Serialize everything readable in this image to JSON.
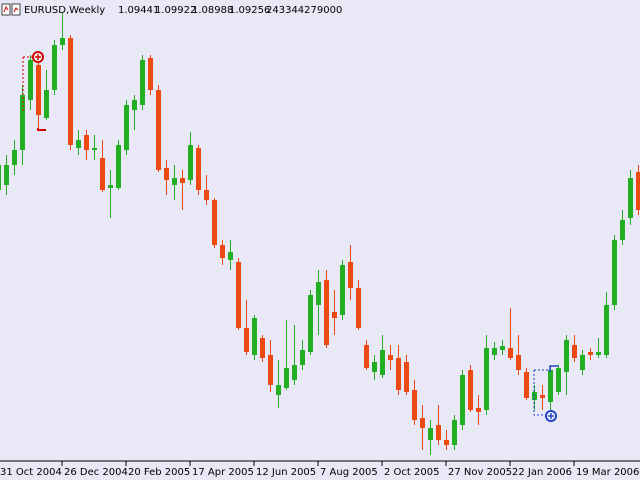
{
  "chart_data": {
    "type": "candlestick",
    "title": "EURUSD,Weekly",
    "header_values": [
      1.09441,
      1.09922,
      1.08988,
      1.09256
    ],
    "volume": 243344279000,
    "up_color": "#22b022",
    "down_color": "#ec4a12",
    "ylim": [
      1.145,
      1.375
    ],
    "categories": [
      "31 Oct 2004",
      null,
      null,
      null,
      null,
      null,
      null,
      null,
      "26 Dec 2004",
      null,
      null,
      null,
      null,
      null,
      null,
      null,
      "20 Feb 2005",
      null,
      null,
      null,
      null,
      null,
      null,
      null,
      "17 Apr 2005",
      null,
      null,
      null,
      null,
      null,
      null,
      null,
      "12 Jun 2005",
      null,
      null,
      null,
      null,
      null,
      null,
      null,
      "7 Aug 2005",
      null,
      null,
      null,
      null,
      null,
      null,
      null,
      "2 Oct 2005",
      null,
      null,
      null,
      null,
      null,
      null,
      null,
      "27 Nov 2005",
      null,
      null,
      null,
      null,
      null,
      null,
      null,
      "22 Jan 2006",
      null,
      null,
      null,
      null,
      null,
      null,
      null,
      "19 Mar 2006",
      null,
      null,
      null,
      null,
      null,
      null,
      null,
      null
    ],
    "open": [
      1.28,
      1.2825,
      1.2925,
      1.3,
      1.325,
      1.3425,
      1.316,
      1.33,
      1.3525,
      1.356,
      1.301,
      1.3075,
      1.3,
      1.296,
      1.281,
      1.281,
      1.3,
      1.32,
      1.3225,
      1.346,
      1.33,
      1.291,
      1.2825,
      1.286,
      1.285,
      1.301,
      1.28,
      1.275,
      1.2525,
      1.245,
      1.244,
      1.211,
      1.1975,
      1.206,
      1.1975,
      1.1775,
      1.181,
      1.185,
      1.1925,
      1.199,
      1.2225,
      1.235,
      1.219,
      1.2175,
      1.244,
      1.231,
      1.2025,
      1.189,
      1.1875,
      1.1975,
      1.196,
      1.194,
      1.18,
      1.166,
      1.155,
      1.1625,
      1.155,
      1.1525,
      1.1625,
      1.19,
      1.171,
      1.17,
      1.1975,
      1.2,
      1.201,
      1.1975,
      1.189,
      1.175,
      1.1775,
      1.174,
      1.179,
      1.189,
      1.2025,
      1.19,
      1.199,
      1.1975,
      1.1975,
      1.2225,
      1.255,
      1.266,
      1.289
    ],
    "high": [
      1.2975,
      1.2975,
      1.305,
      1.3325,
      1.3475,
      1.3475,
      1.34,
      1.355,
      1.369,
      1.3575,
      1.31,
      1.31,
      1.3075,
      1.305,
      1.29,
      1.305,
      1.325,
      1.3275,
      1.3475,
      1.3475,
      1.3325,
      1.295,
      1.2925,
      1.29,
      1.309,
      1.3025,
      1.2875,
      1.276,
      1.255,
      1.255,
      1.246,
      1.225,
      1.2175,
      1.2075,
      1.205,
      1.195,
      1.215,
      1.2125,
      1.205,
      1.23,
      1.24,
      1.24,
      1.23,
      1.245,
      1.2525,
      1.235,
      1.205,
      1.1975,
      1.2075,
      1.2025,
      1.2025,
      1.1975,
      1.185,
      1.1725,
      1.165,
      1.1725,
      1.16,
      1.1675,
      1.19,
      1.1925,
      1.1775,
      1.2075,
      1.204,
      1.205,
      1.221,
      1.2075,
      1.191,
      1.1825,
      1.1825,
      1.191,
      1.1925,
      1.2075,
      1.2075,
      1.2,
      1.201,
      1.206,
      1.229,
      1.2575,
      1.27,
      1.29,
      1.2925
    ],
    "low": [
      1.275,
      1.2775,
      1.2875,
      1.2925,
      1.32,
      1.31,
      1.315,
      1.3275,
      1.35,
      1.3,
      1.2975,
      1.295,
      1.295,
      1.279,
      1.266,
      1.28,
      1.2975,
      1.31,
      1.32,
      1.3275,
      1.289,
      1.2775,
      1.275,
      1.27,
      1.2825,
      1.2775,
      1.2725,
      1.251,
      1.2425,
      1.24,
      1.21,
      1.1975,
      1.195,
      1.194,
      1.179,
      1.171,
      1.18,
      1.1825,
      1.19,
      1.1975,
      1.2075,
      1.201,
      1.2075,
      1.215,
      1.225,
      1.21,
      1.19,
      1.185,
      1.186,
      1.19,
      1.1775,
      1.1775,
      1.1625,
      1.15,
      1.1475,
      1.1525,
      1.15,
      1.15,
      1.16,
      1.169,
      1.1625,
      1.1675,
      1.195,
      1.1975,
      1.195,
      1.1875,
      1.175,
      1.17,
      1.17,
      1.17,
      1.1775,
      1.1775,
      1.194,
      1.1875,
      1.195,
      1.196,
      1.196,
      1.22,
      1.2525,
      1.2625,
      1.2675
    ],
    "close": [
      1.2925,
      1.2925,
      1.3,
      1.3275,
      1.345,
      1.3175,
      1.33,
      1.3525,
      1.356,
      1.3025,
      1.305,
      1.3,
      1.301,
      1.28,
      1.2825,
      1.3025,
      1.3225,
      1.325,
      1.345,
      1.33,
      1.29,
      1.285,
      1.286,
      1.2835,
      1.3025,
      1.28,
      1.275,
      1.2525,
      1.246,
      1.249,
      1.211,
      1.199,
      1.216,
      1.196,
      1.1825,
      1.1825,
      1.191,
      1.1925,
      1.2,
      1.2275,
      1.234,
      1.2025,
      1.216,
      1.2425,
      1.231,
      1.211,
      1.191,
      1.194,
      1.2,
      1.195,
      1.18,
      1.179,
      1.165,
      1.161,
      1.161,
      1.155,
      1.1525,
      1.165,
      1.1875,
      1.17,
      1.169,
      1.201,
      1.201,
      1.202,
      1.196,
      1.19,
      1.176,
      1.179,
      1.176,
      1.19,
      1.191,
      1.205,
      1.196,
      1.1975,
      1.1975,
      1.199,
      1.2225,
      1.255,
      1.265,
      1.286,
      1.27
    ]
  }
}
